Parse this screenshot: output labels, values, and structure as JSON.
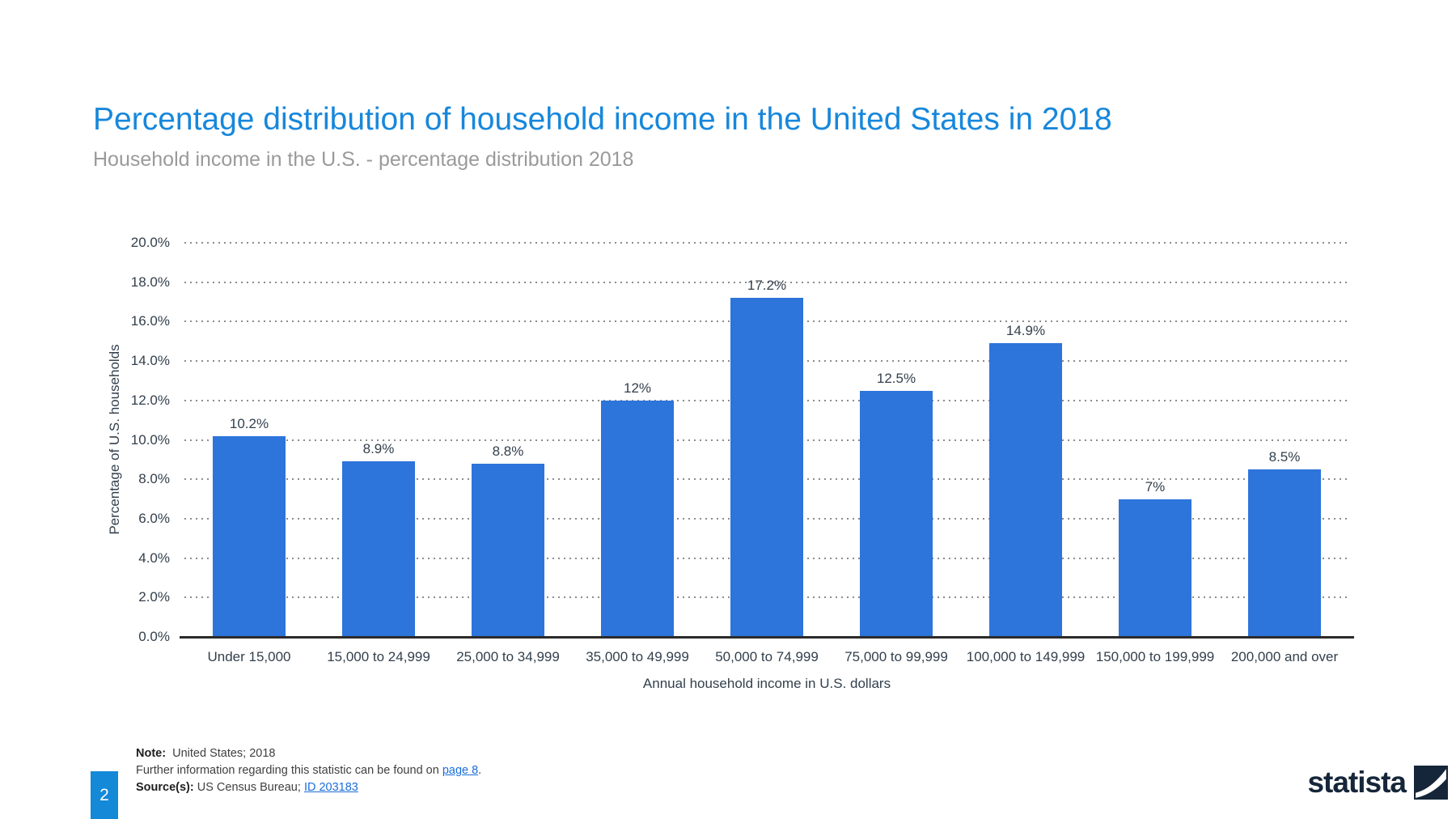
{
  "header": {
    "title": "Percentage distribution of household income in the United States in 2018",
    "subtitle": "Household income in the U.S. - percentage distribution 2018"
  },
  "chart_data": {
    "type": "bar",
    "title": "Percentage distribution of household income in the United States in 2018",
    "categories": [
      "Under 15,000",
      "15,000 to 24,999",
      "25,000 to 34,999",
      "35,000 to 49,999",
      "50,000 to 74,999",
      "75,000 to 99,999",
      "100,000 to 149,999",
      "150,000 to 199,999",
      "200,000 and over"
    ],
    "values": [
      10.2,
      8.9,
      8.8,
      12,
      17.2,
      12.5,
      14.9,
      7,
      8.5
    ],
    "value_labels": [
      "10.2%",
      "8.9%",
      "8.8%",
      "12%",
      "17.2%",
      "12.5%",
      "14.9%",
      "7%",
      "8.5%"
    ],
    "xlabel": "Annual household income in U.S. dollars",
    "ylabel": "Percentage of U.S. households",
    "ylim": [
      0,
      20
    ],
    "ytick_step": 2,
    "ytick_labels": [
      "0.0%",
      "2.0%",
      "4.0%",
      "6.0%",
      "8.0%",
      "10.0%",
      "12.0%",
      "14.0%",
      "16.0%",
      "18.0%",
      "20.0%"
    ],
    "grid": "horizontal-dotted",
    "legend": "none",
    "bar_color": "#2d74db"
  },
  "footer": {
    "page_number": "2",
    "note_label": "Note:",
    "note_text": "United States; 2018",
    "info_prefix": "Further information regarding this statistic can be found on ",
    "info_link": "page 8",
    "info_suffix": ".",
    "source_label": "Source(s):",
    "source_text": " US Census Bureau; ",
    "source_link": "ID 203183",
    "brand": "statista"
  },
  "colors": {
    "title_blue": "#1787db",
    "subtitle_gray": "#9a9a9a",
    "bar_blue": "#2d74db",
    "axis_text": "#33404d",
    "grid_dot": "#8c8c8c",
    "baseline": "#2b2b2b",
    "link_blue": "#1a6ed9",
    "badge_blue": "#1389d8",
    "brand_navy": "#16263a"
  }
}
